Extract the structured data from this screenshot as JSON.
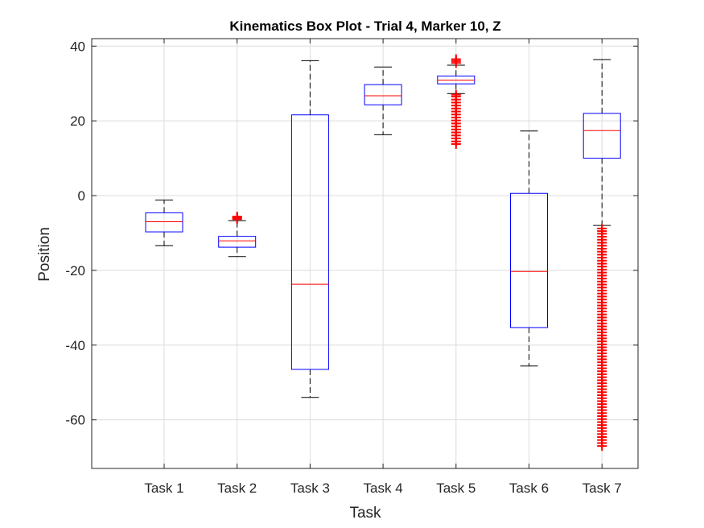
{
  "chart_data": {
    "type": "box",
    "title": "Kinematics Box Plot - Trial 4, Marker 10, Z",
    "xlabel": "Task",
    "ylabel": "Position",
    "ylim": [
      -73,
      42
    ],
    "yticks": [
      40,
      20,
      0,
      -20,
      -40,
      -60
    ],
    "grid": true,
    "colors": {
      "box": "#0000ff",
      "median": "#ff0000",
      "whisker": "#000000",
      "outlier": "#ff0000",
      "grid": "#dcdcdc"
    },
    "categories": [
      "Task 1",
      "Task 2",
      "Task 3",
      "Task 4",
      "Task 5",
      "Task 6",
      "Task 7"
    ],
    "boxes": [
      {
        "category": "Task 1",
        "whisker_low": -13.4,
        "q1": -9.7,
        "median": -7.0,
        "q3": -4.6,
        "whisker_high": -1.2,
        "outliers": []
      },
      {
        "category": "Task 2",
        "whisker_low": -16.3,
        "q1": -13.8,
        "median": -12.1,
        "q3": -10.9,
        "whisker_high": -6.7,
        "outliers": [
          -6.3,
          -6.0,
          -5.8,
          -5.6
        ]
      },
      {
        "category": "Task 3",
        "whisker_low": -54.0,
        "q1": -46.5,
        "median": -23.7,
        "q3": 21.6,
        "whisker_high": 36.1,
        "outliers": []
      },
      {
        "category": "Task 4",
        "whisker_low": 16.3,
        "q1": 24.3,
        "median": 26.7,
        "q3": 29.7,
        "whisker_high": 34.4,
        "outliers": []
      },
      {
        "category": "Task 5",
        "whisker_low": 27.3,
        "q1": 29.9,
        "median": 30.9,
        "q3": 32.0,
        "whisker_high": 34.9,
        "outliers": [
          13.8,
          14.5,
          15.3,
          16.1,
          16.9,
          17.7,
          18.5,
          19.3,
          20.1,
          20.9,
          21.7,
          22.5,
          23.3,
          24.1,
          24.9,
          25.7,
          26.5,
          27.0,
          35.5,
          36.0,
          36.5
        ]
      },
      {
        "category": "Task 6",
        "whisker_low": -45.6,
        "q1": -35.3,
        "median": -20.3,
        "q3": 0.6,
        "whisker_high": 17.3,
        "outliers": []
      },
      {
        "category": "Task 7",
        "whisker_low": -8.0,
        "q1": 10.0,
        "median": 17.4,
        "q3": 22.0,
        "whisker_high": 36.4,
        "outliers": [
          -8.8,
          -9.5,
          -10.2,
          -11.0,
          -11.8,
          -12.6,
          -13.4,
          -14.2,
          -15.0,
          -15.8,
          -16.6,
          -17.4,
          -18.2,
          -19.0,
          -19.8,
          -20.6,
          -21.4,
          -22.2,
          -23.0,
          -23.8,
          -24.6,
          -25.4,
          -26.2,
          -27.0,
          -27.8,
          -28.6,
          -29.4,
          -30.2,
          -31.0,
          -31.8,
          -32.6,
          -33.4,
          -34.2,
          -35.0,
          -35.8,
          -36.6,
          -37.4,
          -38.2,
          -39.0,
          -39.8,
          -40.6,
          -41.4,
          -42.2,
          -43.0,
          -43.8,
          -44.6,
          -45.4,
          -46.2,
          -47.0,
          -47.8,
          -48.6,
          -49.4,
          -50.2,
          -51.0,
          -51.8,
          -52.6,
          -53.4,
          -54.2,
          -55.0,
          -55.8,
          -56.6,
          -57.4,
          -58.2,
          -59.0,
          -59.8,
          -60.6,
          -61.4,
          -62.2,
          -63.0,
          -63.8,
          -64.6,
          -65.4,
          -66.2,
          -67.0
        ]
      }
    ]
  }
}
